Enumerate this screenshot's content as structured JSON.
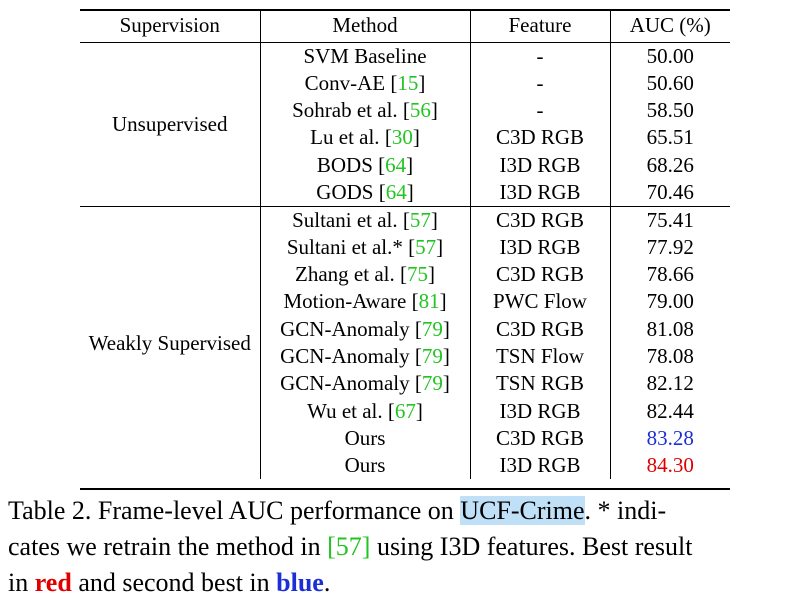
{
  "table": {
    "headers": [
      "Supervision",
      "Method",
      "Feature",
      "AUC (%)"
    ],
    "groups": [
      {
        "name": "Unsupervised",
        "rows": [
          {
            "method": "SVM Baseline",
            "cite": "",
            "suffix": "",
            "feature": "-",
            "auc": "50.00",
            "mark": ""
          },
          {
            "method": "Conv-AE",
            "cite": "15",
            "suffix": "",
            "feature": "-",
            "auc": "50.60",
            "mark": ""
          },
          {
            "method": "Sohrab et al.",
            "cite": "56",
            "suffix": "",
            "feature": "-",
            "auc": "58.50",
            "mark": ""
          },
          {
            "method": "Lu et al.",
            "cite": "30",
            "suffix": "",
            "feature": "C3D RGB",
            "auc": "65.51",
            "mark": ""
          },
          {
            "method": "BODS",
            "cite": "64",
            "suffix": "",
            "feature": "I3D RGB",
            "auc": "68.26",
            "mark": ""
          },
          {
            "method": "GODS",
            "cite": "64",
            "suffix": "",
            "feature": "I3D RGB",
            "auc": "70.46",
            "mark": ""
          }
        ]
      },
      {
        "name": "Weakly Supervised",
        "rows": [
          {
            "method": "Sultani et al.",
            "cite": "57",
            "suffix": "",
            "feature": "C3D RGB",
            "auc": "75.41",
            "mark": ""
          },
          {
            "method": "Sultani et al.*",
            "cite": "57",
            "suffix": "",
            "feature": "I3D RGB",
            "auc": "77.92",
            "mark": ""
          },
          {
            "method": "Zhang et al.",
            "cite": "75",
            "suffix": "",
            "feature": "C3D RGB",
            "auc": "78.66",
            "mark": ""
          },
          {
            "method": "Motion-Aware",
            "cite": "81",
            "suffix": "",
            "feature": "PWC Flow",
            "auc": "79.00",
            "mark": ""
          },
          {
            "method": "GCN-Anomaly",
            "cite": "79",
            "suffix": "",
            "feature": "C3D RGB",
            "auc": "81.08",
            "mark": ""
          },
          {
            "method": "GCN-Anomaly",
            "cite": "79",
            "suffix": "",
            "feature": "TSN Flow",
            "auc": "78.08",
            "mark": ""
          },
          {
            "method": "GCN-Anomaly",
            "cite": "79",
            "suffix": "",
            "feature": "TSN RGB",
            "auc": "82.12",
            "mark": ""
          },
          {
            "method": "Wu et al.",
            "cite": "67",
            "suffix": "",
            "feature": "I3D RGB",
            "auc": "82.44",
            "mark": ""
          },
          {
            "method": "Ours",
            "cite": "",
            "suffix": "",
            "feature": "C3D RGB",
            "auc": "83.28",
            "mark": "second"
          },
          {
            "method": "Ours",
            "cite": "",
            "suffix": "",
            "feature": "I3D RGB",
            "auc": "84.30",
            "mark": "best"
          }
        ]
      }
    ]
  },
  "caption": {
    "line1_a": "Table 2. Frame-level AUC performance on ",
    "line1_highlight": "UCF-Crime",
    "line1_b": ".  * indi-",
    "line2_a": "cates we retrain the method in ",
    "line2_cite": "[57]",
    "line2_b": " using I3D features. Best result",
    "line3_a": "in ",
    "line3_red": "red",
    "line3_b": " and second best in ",
    "line3_blue": "blue",
    "line3_c": "."
  },
  "colors": {
    "citation": "#22c422",
    "best": "#e00000",
    "second": "#1a2fd6",
    "highlight": "#bfe0f7"
  }
}
